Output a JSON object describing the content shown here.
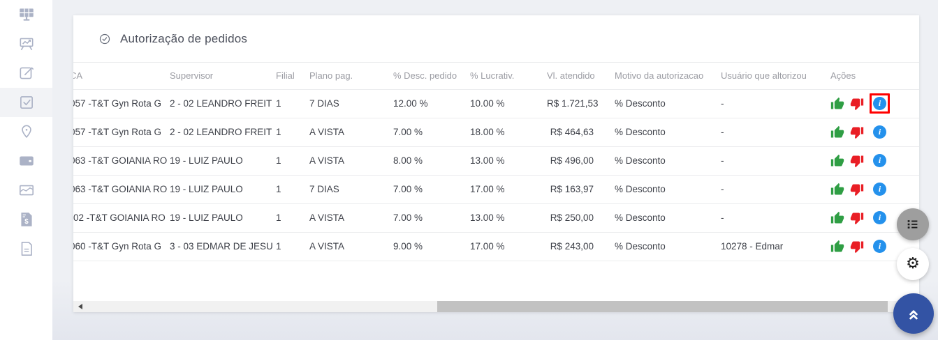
{
  "sidebar": {
    "items": [
      {
        "icon": "solar-panel-icon",
        "active": false
      },
      {
        "icon": "presentation-chart-icon",
        "active": false
      },
      {
        "icon": "edit-icon",
        "active": false
      },
      {
        "icon": "checkbox-icon",
        "active": true
      },
      {
        "icon": "location-pin-icon",
        "active": false
      },
      {
        "icon": "wallet-icon",
        "active": false
      },
      {
        "icon": "area-chart-icon",
        "active": false
      },
      {
        "icon": "invoice-dollar-icon",
        "active": false
      },
      {
        "icon": "document-icon",
        "active": false
      }
    ]
  },
  "card": {
    "title": "Autorização de pedidos",
    "title_icon": "check-circle-icon"
  },
  "table": {
    "columns": [
      {
        "key": "ca",
        "label": "CA",
        "clipped": true
      },
      {
        "key": "supervisor",
        "label": "Supervisor"
      },
      {
        "key": "filial",
        "label": "Filial"
      },
      {
        "key": "plano_pag",
        "label": "Plano pag."
      },
      {
        "key": "desc_pedido",
        "label": "% Desc. pedido"
      },
      {
        "key": "lucrativ",
        "label": "% Lucrativ."
      },
      {
        "key": "vl_atendido",
        "label": "Vl. atendido"
      },
      {
        "key": "motivo",
        "label": "Motivo da autorizacao"
      },
      {
        "key": "usuario",
        "label": "Usuário que altorizou"
      },
      {
        "key": "acoes",
        "label": "Ações"
      }
    ],
    "rows": [
      {
        "ca": "057 -T&T Gyn Rota G",
        "ca_clipped": true,
        "supervisor": "2 - 02 LEANDRO FREIT",
        "filial": "1",
        "plano_pag": "7 DIAS",
        "desc_pedido": "12.00 %",
        "lucrativ": "10.00 %",
        "vl_atendido": "R$ 1.721,53",
        "motivo": "% Desconto",
        "usuario": "-",
        "annotated": true
      },
      {
        "ca": "057 -T&T Gyn Rota G",
        "ca_clipped": true,
        "supervisor": "2 - 02 LEANDRO FREIT",
        "filial": "1",
        "plano_pag": "A VISTA",
        "desc_pedido": "7.00 %",
        "lucrativ": "18.00 %",
        "vl_atendido": "R$ 464,63",
        "motivo": "% Desconto",
        "usuario": "-",
        "annotated": false
      },
      {
        "ca": "063 -T&T GOIANIA RO",
        "ca_clipped": true,
        "supervisor": "19 - LUIZ PAULO",
        "filial": "1",
        "plano_pag": "A VISTA",
        "desc_pedido": "8.00 %",
        "lucrativ": "13.00 %",
        "vl_atendido": "R$ 496,00",
        "motivo": "% Desconto",
        "usuario": "-",
        "annotated": false
      },
      {
        "ca": "063 -T&T GOIANIA RO",
        "ca_clipped": true,
        "supervisor": "19 - LUIZ PAULO",
        "filial": "1",
        "plano_pag": "7 DIAS",
        "desc_pedido": "7.00 %",
        "lucrativ": "17.00 %",
        "vl_atendido": "R$ 163,97",
        "motivo": "% Desconto",
        "usuario": "-",
        "annotated": false
      },
      {
        "ca": "02 -T&T GOIANIA RO",
        "ca_clipped": false,
        "supervisor": "19 - LUIZ PAULO",
        "filial": "1",
        "plano_pag": "A VISTA",
        "desc_pedido": "7.00 %",
        "lucrativ": "13.00 %",
        "vl_atendido": "R$ 250,00",
        "motivo": "% Desconto",
        "usuario": "-",
        "annotated": false
      },
      {
        "ca": "060 -T&T Gyn Rota G",
        "ca_clipped": true,
        "supervisor": "3 - 03 EDMAR DE JESU",
        "filial": "1",
        "plano_pag": "A VISTA",
        "desc_pedido": "9.00 %",
        "lucrativ": "17.00 %",
        "vl_atendido": "R$ 243,00",
        "motivo": "% Desconto",
        "usuario": "10278 - Edmar",
        "annotated": false
      }
    ],
    "action_icons": [
      "thumbs-up-icon",
      "thumbs-down-icon",
      "info-icon"
    ]
  },
  "icons": {
    "info_glyph": "i",
    "gear_glyph": "⚙"
  },
  "floating_buttons": {
    "legend": "list-icon",
    "settings": "gear-icon",
    "scroll_top": "double-chevron-up-icon"
  },
  "colors": {
    "thumbs_up": "#2f9e44",
    "thumbs_down": "#e91e25",
    "info_blue": "#2491ec",
    "annotation_red": "#ff0000",
    "fab_blue": "#3353a4",
    "sidebar_icon": "#abb2c6"
  }
}
